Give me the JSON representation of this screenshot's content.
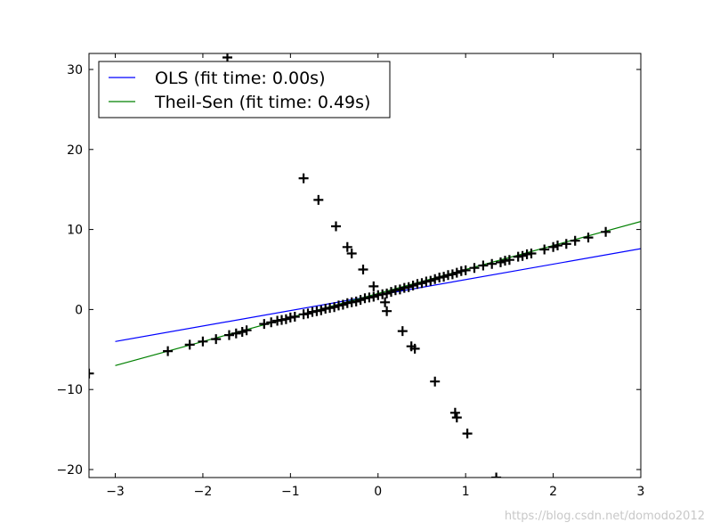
{
  "chart_data": {
    "type": "scatter",
    "title": "",
    "xlabel": "",
    "ylabel": "",
    "xlim": [
      -3.3,
      3.0
    ],
    "ylim": [
      -21,
      32
    ],
    "x_ticks": [
      -3,
      -2,
      -1,
      0,
      1,
      2,
      3
    ],
    "y_ticks": [
      -20,
      -10,
      0,
      10,
      20,
      30
    ],
    "x_tick_labels": [
      "−3",
      "−2",
      "−1",
      "0",
      "1",
      "2",
      "3"
    ],
    "y_tick_labels": [
      "−20",
      "−10",
      "0",
      "10",
      "20",
      "30"
    ],
    "grid": false,
    "legend_position": "top-left",
    "series": [
      {
        "name": "OLS (fit time: 0.00s)",
        "kind": "line",
        "color": "#0000ff",
        "x": [
          -3.0,
          3.0
        ],
        "y": [
          -4.0,
          7.6
        ]
      },
      {
        "name": "Theil-Sen (fit time: 0.49s)",
        "kind": "line",
        "color": "#008000",
        "x": [
          -3.0,
          3.0
        ],
        "y": [
          -7.0,
          11.0
        ]
      }
    ],
    "points": {
      "marker": "+",
      "color": "#000000",
      "x": [
        -3.3,
        -2.4,
        -2.15,
        -2.0,
        -1.85,
        -1.7,
        -1.62,
        -1.55,
        -1.5,
        -1.3,
        -1.22,
        -1.15,
        -1.1,
        -1.05,
        -1.0,
        -0.95,
        -0.85,
        -0.8,
        -0.75,
        -0.7,
        -0.65,
        -0.6,
        -0.55,
        -0.5,
        -0.45,
        -0.4,
        -0.35,
        -0.3,
        -0.25,
        -0.2,
        -0.15,
        -0.1,
        -0.05,
        0.0,
        0.05,
        0.1,
        0.15,
        0.2,
        0.25,
        0.3,
        0.35,
        0.4,
        0.45,
        0.5,
        0.55,
        0.6,
        0.65,
        0.7,
        0.75,
        0.8,
        0.85,
        0.9,
        0.95,
        1.0,
        1.1,
        1.2,
        1.3,
        1.4,
        1.45,
        1.5,
        1.6,
        1.65,
        1.7,
        1.75,
        1.9,
        2.0,
        2.05,
        2.15,
        2.25,
        2.4,
        2.6,
        -1.72,
        -0.85,
        -0.68,
        -0.48,
        -0.35,
        -0.3,
        -0.17,
        -0.05,
        0.08,
        0.1,
        0.28,
        0.38,
        0.42,
        0.65,
        0.88,
        0.9,
        1.02,
        1.35
      ],
      "y": [
        -8.0,
        -5.2,
        -4.4,
        -4.0,
        -3.7,
        -3.2,
        -3.0,
        -2.8,
        -2.6,
        -1.8,
        -1.6,
        -1.4,
        -1.3,
        -1.2,
        -1.0,
        -0.9,
        -0.6,
        -0.5,
        -0.3,
        -0.2,
        -0.1,
        0.1,
        0.2,
        0.3,
        0.5,
        0.6,
        0.8,
        0.9,
        1.0,
        1.2,
        1.4,
        1.5,
        1.6,
        1.8,
        1.9,
        2.0,
        2.2,
        2.4,
        2.5,
        2.7,
        2.8,
        3.0,
        3.2,
        3.3,
        3.5,
        3.6,
        3.8,
        4.0,
        4.1,
        4.3,
        4.4,
        4.6,
        4.8,
        4.9,
        5.2,
        5.5,
        5.7,
        5.9,
        6.1,
        6.2,
        6.6,
        6.7,
        6.9,
        7.0,
        7.5,
        7.8,
        8.0,
        8.2,
        8.6,
        9.0,
        9.7,
        31.5,
        16.4,
        13.7,
        10.4,
        7.8,
        7.0,
        5.0,
        2.9,
        0.9,
        -0.2,
        -2.7,
        -4.6,
        -4.9,
        -9.0,
        -12.9,
        -13.5,
        -15.5,
        -21.0
      ]
    }
  },
  "watermark": "https://blog.csdn.net/domodo2012"
}
